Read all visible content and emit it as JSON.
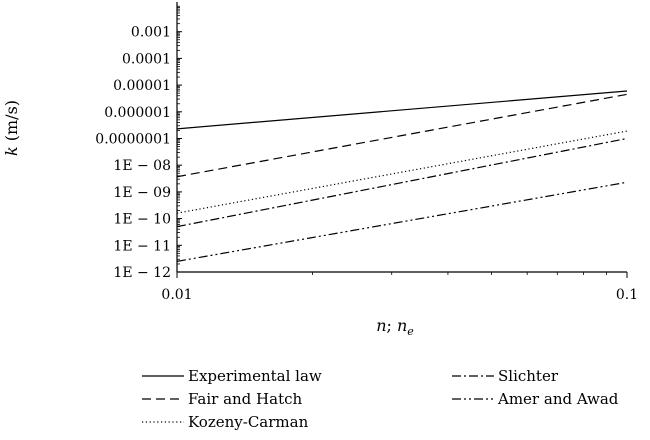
{
  "chart_data": {
    "type": "line",
    "x_scale": "log",
    "y_scale": "log",
    "xlim": [
      0.01,
      0.1
    ],
    "ylim": [
      1e-12,
      0.01
    ],
    "xlabel": "n; n_e",
    "xlabel_parts": {
      "main": "n",
      "sep": "; ",
      "main2": "n",
      "sub": "e"
    },
    "ylabel": "k (m/s)",
    "ylabel_parts": {
      "italic": "k",
      "rest": " (m/s)"
    },
    "x_ticks": [
      {
        "value": 0.01,
        "label": "0.01"
      },
      {
        "value": 0.1,
        "label": "0.1"
      }
    ],
    "y_ticks": [
      {
        "value": 1e-12,
        "label": "1E − 12"
      },
      {
        "value": 1e-11,
        "label": "1E − 11"
      },
      {
        "value": 1e-10,
        "label": "1E − 10"
      },
      {
        "value": 1e-09,
        "label": "1E − 09"
      },
      {
        "value": 1e-08,
        "label": "1E − 08"
      },
      {
        "value": 1e-07,
        "label": "0.0000001"
      },
      {
        "value": 1e-06,
        "label": "0.000001"
      },
      {
        "value": 1e-05,
        "label": "0.00001"
      },
      {
        "value": 0.0001,
        "label": "0.0001"
      },
      {
        "value": 0.001,
        "label": "0.001"
      }
    ],
    "legend_position": "bottom",
    "series": [
      {
        "name": "Experimental law",
        "style": "solid",
        "x": [
          0.01,
          0.1
        ],
        "y": [
          2.3e-07,
          6e-06
        ]
      },
      {
        "name": "Fair and Hatch",
        "style": "dashed",
        "x": [
          0.01,
          0.1
        ],
        "y": [
          3.7e-09,
          4.5e-06
        ]
      },
      {
        "name": "Kozeny-Carman",
        "style": "dotted",
        "x": [
          0.01,
          0.1
        ],
        "y": [
          1.6e-10,
          1.9e-07
        ]
      },
      {
        "name": "Slichter",
        "style": "dashdot",
        "x": [
          0.01,
          0.1
        ],
        "y": [
          5e-11,
          1e-07
        ]
      },
      {
        "name": "Amer and Awad",
        "style": "dashdotdot",
        "x": [
          0.01,
          0.1
        ],
        "y": [
          2.5e-12,
          2.3e-09
        ]
      }
    ]
  }
}
